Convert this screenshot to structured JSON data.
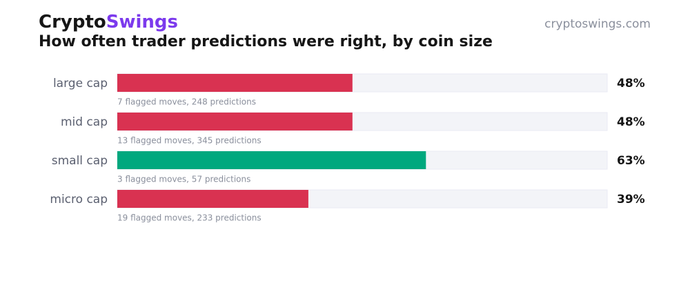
{
  "chart_data": {
    "type": "bar",
    "orientation": "horizontal",
    "brand": {
      "prefix": "Crypto",
      "suffix": "Swings",
      "prefix_color": "#161616",
      "suffix_color": "#7c3aed"
    },
    "site": "cryptoswings.com",
    "title": "How often trader predictions were right, by coin size",
    "categories": [
      "large cap",
      "mid cap",
      "small cap",
      "micro cap"
    ],
    "values": [
      48,
      48,
      63,
      39
    ],
    "value_labels": [
      "48%",
      "48%",
      "63%",
      "39%"
    ],
    "notes": [
      "7 flagged moves, 248 predictions",
      "13 flagged moves, 345 predictions",
      "3 flagged moves, 57 predictions",
      "19 flagged moves, 233 predictions"
    ],
    "colors": [
      "#d93251",
      "#d93251",
      "#00a87e",
      "#d93251"
    ],
    "xlim": [
      0,
      100
    ]
  }
}
